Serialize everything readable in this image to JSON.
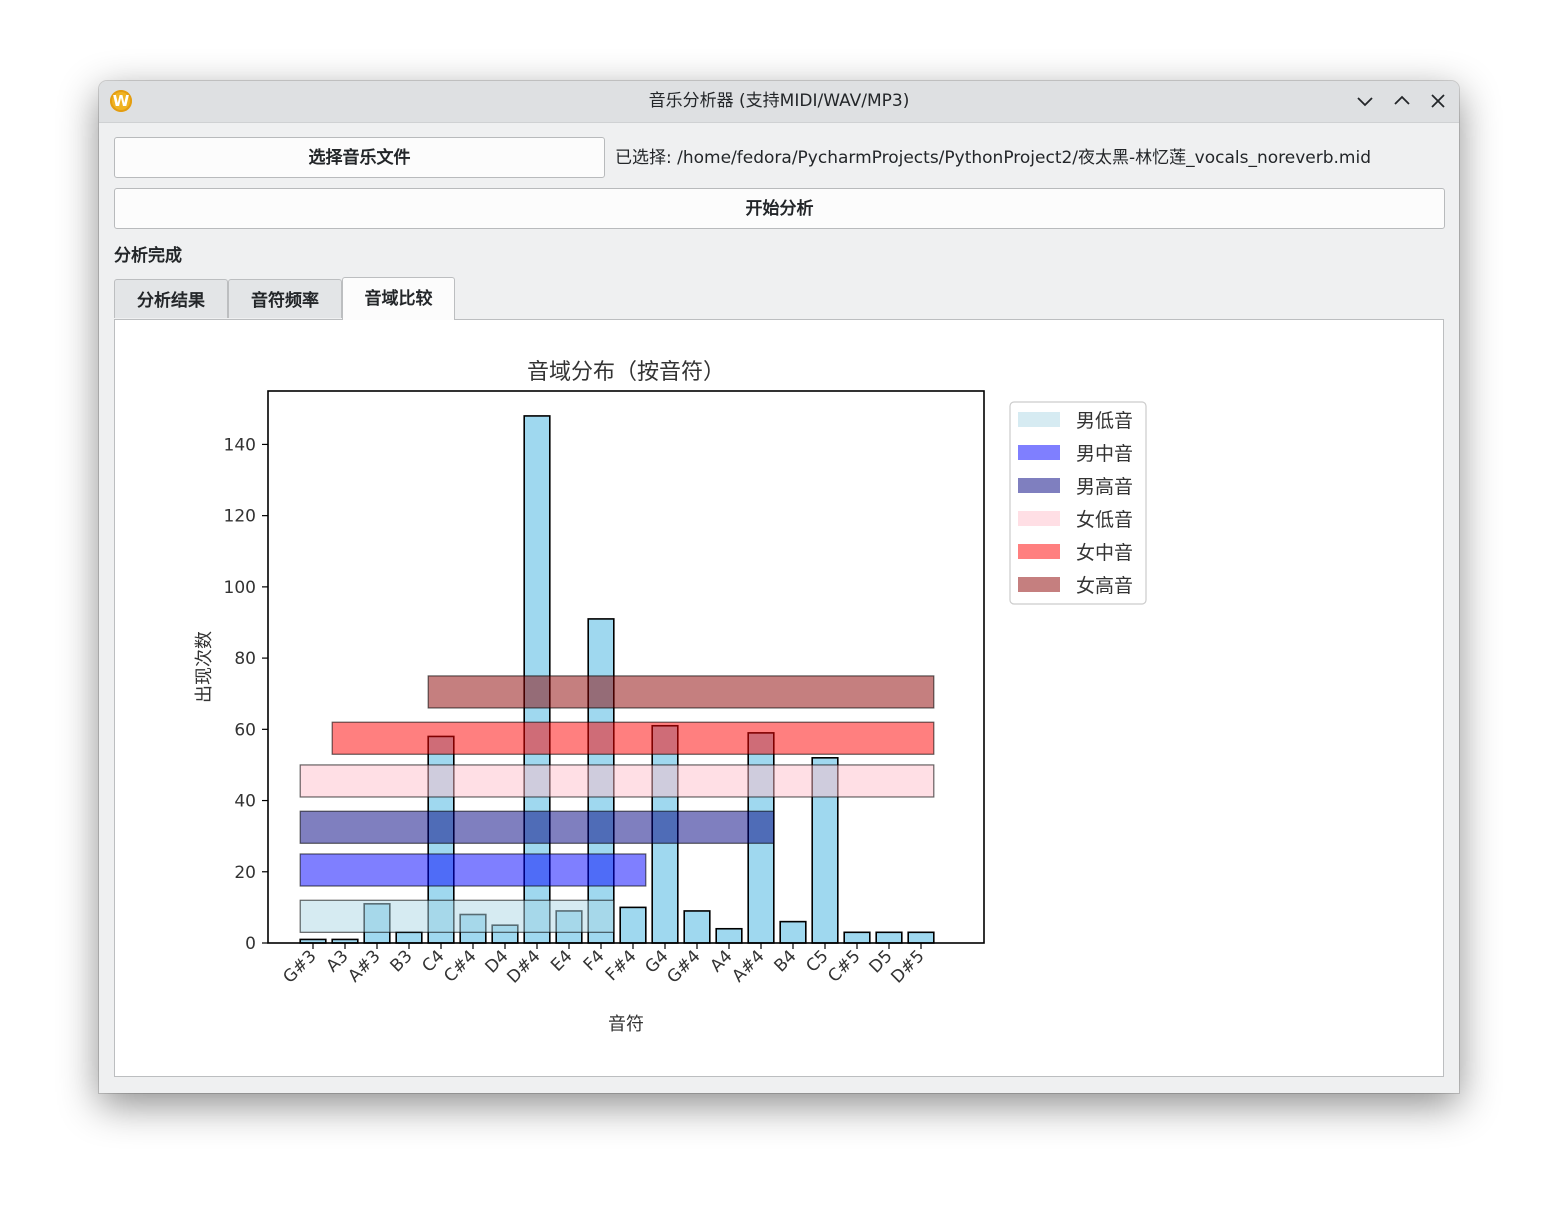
{
  "window": {
    "title": "音乐分析器 (支持MIDI/WAV/MP3)",
    "app_icon": "W"
  },
  "toolbar": {
    "select_file_label": "选择音乐文件",
    "selected_path": "已选择: /home/fedora/PycharmProjects/PythonProject2/夜太黑-林忆莲_vocals_noreverb.mid",
    "analyze_label": "开始分析"
  },
  "status": "分析完成",
  "tabs": [
    {
      "label": "分析结果",
      "active": false
    },
    {
      "label": "音符频率",
      "active": false
    },
    {
      "label": "音域比较",
      "active": true
    }
  ],
  "chart_data": {
    "type": "bar",
    "title": "音域分布（按音符）",
    "xlabel": "音符",
    "ylabel": "出现次数",
    "ylim": [
      0,
      155
    ],
    "yticks": [
      0,
      20,
      40,
      60,
      80,
      100,
      120,
      140
    ],
    "categories": [
      "G#3",
      "A3",
      "A#3",
      "B3",
      "C4",
      "C#4",
      "D4",
      "D#4",
      "E4",
      "F4",
      "F#4",
      "G4",
      "G#4",
      "A4",
      "A#4",
      "B4",
      "C5",
      "C#5",
      "D5",
      "D#5"
    ],
    "values": [
      1,
      1,
      11,
      3,
      58,
      8,
      5,
      148,
      9,
      91,
      10,
      61,
      9,
      4,
      59,
      6,
      52,
      3,
      3,
      3
    ],
    "bar_color": "#87ceeb",
    "ranges": [
      {
        "name": "男低音",
        "color": "#add8e6",
        "alpha": 0.5,
        "start": "G#3",
        "end": "F4",
        "y0": 3,
        "y1": 12
      },
      {
        "name": "男中音",
        "color": "#0000ff",
        "alpha": 0.5,
        "start": "G#3",
        "end": "F#4",
        "y0": 16,
        "y1": 25
      },
      {
        "name": "男高音",
        "color": "#000080",
        "alpha": 0.5,
        "start": "G#3",
        "end": "A#4",
        "y0": 28,
        "y1": 37
      },
      {
        "name": "女低音",
        "color": "#ffc0cb",
        "alpha": 0.5,
        "start": "G#3",
        "end": "D#5",
        "y0": 41,
        "y1": 50
      },
      {
        "name": "女中音",
        "color": "#ff0000",
        "alpha": 0.5,
        "start": "A3",
        "end": "D#5",
        "y0": 53,
        "y1": 62
      },
      {
        "name": "女高音",
        "color": "#8b0000",
        "alpha": 0.5,
        "start": "C4",
        "end": "D#5",
        "y0": 66,
        "y1": 75
      }
    ],
    "legend_position": "outside-top-right",
    "grid": false
  }
}
